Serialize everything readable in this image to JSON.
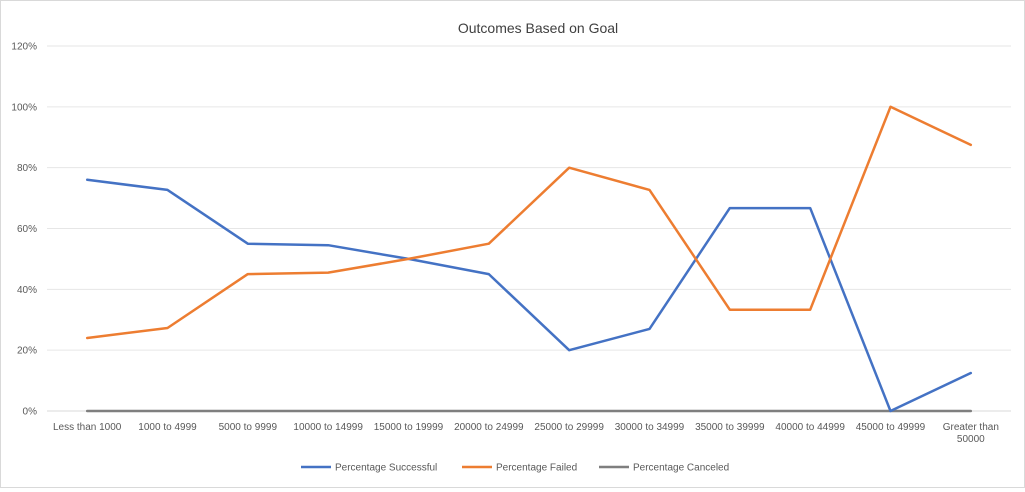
{
  "chart_data": {
    "type": "line",
    "title": "Outcomes Based on Goal",
    "xlabel": "",
    "ylabel": "",
    "ylim": [
      0,
      120
    ],
    "y_ticks": [
      "0%",
      "20%",
      "40%",
      "60%",
      "80%",
      "100%",
      "120%"
    ],
    "y_tick_values": [
      0,
      20,
      40,
      60,
      80,
      100,
      120
    ],
    "categories": [
      "Less than 1000",
      "1000 to 4999",
      "5000 to 9999",
      "10000 to 14999",
      "15000 to 19999",
      "20000 to 24999",
      "25000 to 29999",
      "30000 to 34999",
      "35000 to 39999",
      "40000 to 44999",
      "45000 to 49999",
      "Greater than 50000"
    ],
    "category_lines": [
      [
        "Less than 1000"
      ],
      [
        "1000 to 4999"
      ],
      [
        "5000 to 9999"
      ],
      [
        "10000 to 14999"
      ],
      [
        "15000 to 19999"
      ],
      [
        "20000 to 24999"
      ],
      [
        "25000 to 29999"
      ],
      [
        "30000 to 34999"
      ],
      [
        "35000 to 39999"
      ],
      [
        "40000 to 44999"
      ],
      [
        "45000 to 49999"
      ],
      [
        "Greater than",
        "50000"
      ]
    ],
    "series": [
      {
        "name": "Percentage Successful",
        "color": "#4472c4",
        "values": [
          76,
          72.7,
          55,
          54.5,
          50,
          45,
          20,
          27,
          66.7,
          66.7,
          0,
          12.5
        ]
      },
      {
        "name": "Percentage Failed",
        "color": "#ed7d31",
        "values": [
          24,
          27.3,
          45,
          45.5,
          50,
          55,
          80,
          72.7,
          33.3,
          33.3,
          100,
          87.5
        ]
      },
      {
        "name": "Percentage Canceled",
        "color": "#7f7f7f",
        "values": [
          0,
          0,
          0,
          0,
          0,
          0,
          0,
          0,
          0,
          0,
          0,
          0
        ]
      }
    ],
    "grid": true,
    "legend_position": "bottom"
  }
}
